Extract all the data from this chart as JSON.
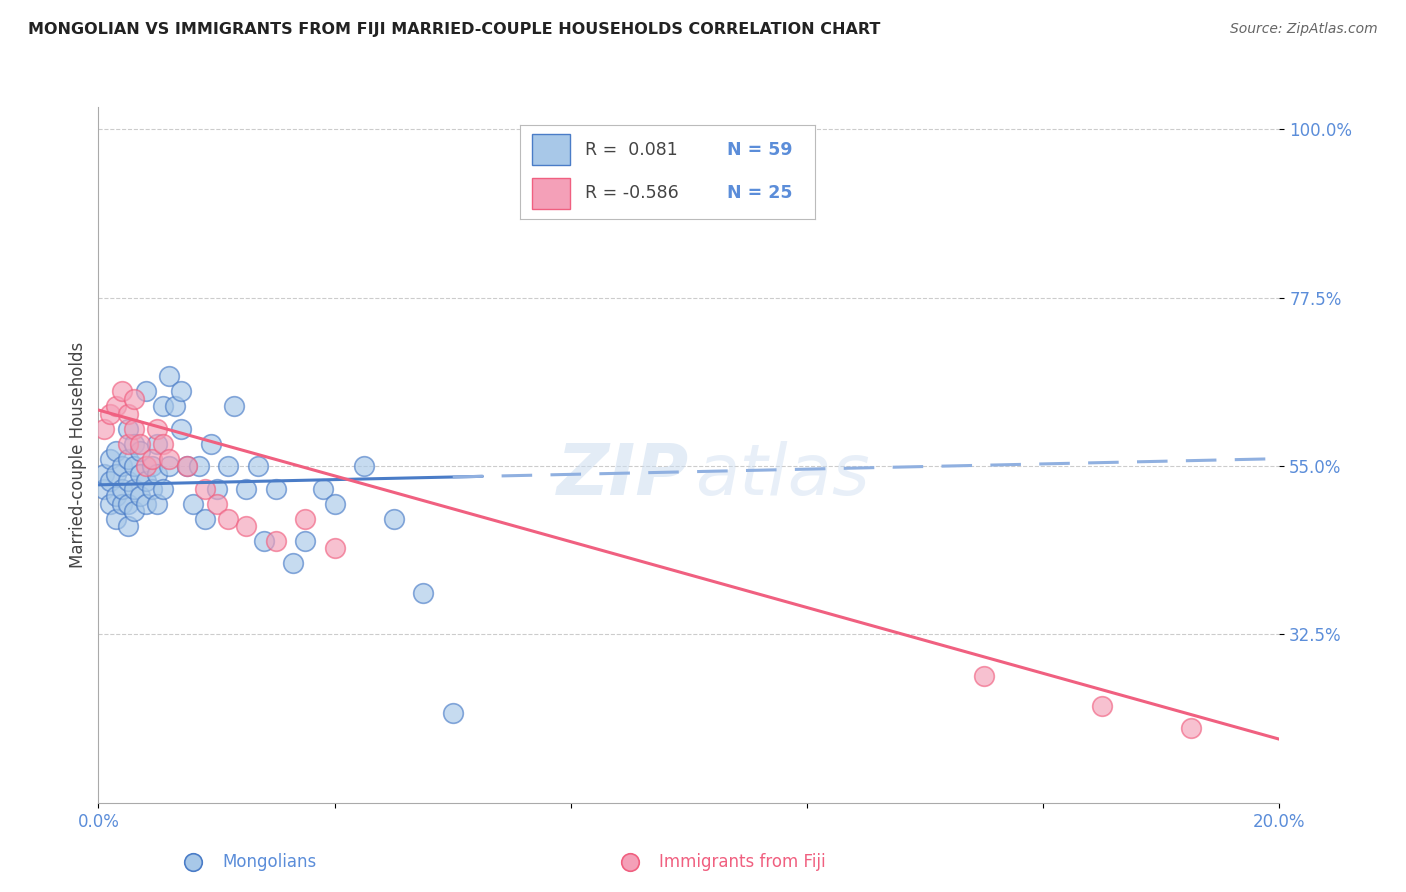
{
  "title": "MONGOLIAN VS IMMIGRANTS FROM FIJI MARRIED-COUPLE HOUSEHOLDS CORRELATION CHART",
  "source": "Source: ZipAtlas.com",
  "xlabel_mongolians": "Mongolians",
  "xlabel_fiji": "Immigrants from Fiji",
  "ylabel": "Married-couple Households",
  "x_min": 0.0,
  "x_max": 0.2,
  "y_min": 0.1,
  "y_max": 1.03,
  "y_ticks": [
    0.325,
    0.55,
    0.775,
    1.0
  ],
  "y_tick_labels": [
    "32.5%",
    "55.0%",
    "77.5%",
    "100.0%"
  ],
  "x_ticks": [
    0.0,
    0.04,
    0.08,
    0.12,
    0.16,
    0.2
  ],
  "x_tick_labels": [
    "0.0%",
    "",
    "",
    "",
    "",
    "20.0%"
  ],
  "color_mongolian": "#a8c8e8",
  "color_fiji": "#f4a0b8",
  "color_trend_mongolian": "#4a7cc7",
  "color_trend_fiji": "#f06080",
  "color_trend_dashed": "#90b0e0",
  "color_axis_labels": "#5b8dd9",
  "color_title": "#222222",
  "color_grid": "#cccccc",
  "background_color": "#ffffff",
  "mongolian_x": [
    0.001,
    0.001,
    0.002,
    0.002,
    0.002,
    0.003,
    0.003,
    0.003,
    0.003,
    0.004,
    0.004,
    0.004,
    0.005,
    0.005,
    0.005,
    0.005,
    0.005,
    0.006,
    0.006,
    0.006,
    0.006,
    0.007,
    0.007,
    0.007,
    0.008,
    0.008,
    0.008,
    0.009,
    0.009,
    0.01,
    0.01,
    0.01,
    0.011,
    0.011,
    0.012,
    0.012,
    0.013,
    0.014,
    0.014,
    0.015,
    0.016,
    0.017,
    0.018,
    0.019,
    0.02,
    0.022,
    0.023,
    0.025,
    0.027,
    0.028,
    0.03,
    0.033,
    0.035,
    0.038,
    0.04,
    0.045,
    0.05,
    0.055,
    0.06
  ],
  "mongolian_y": [
    0.52,
    0.54,
    0.5,
    0.53,
    0.56,
    0.48,
    0.51,
    0.54,
    0.57,
    0.5,
    0.52,
    0.55,
    0.47,
    0.5,
    0.53,
    0.56,
    0.6,
    0.49,
    0.52,
    0.55,
    0.58,
    0.51,
    0.54,
    0.57,
    0.5,
    0.53,
    0.65,
    0.52,
    0.55,
    0.5,
    0.54,
    0.58,
    0.52,
    0.63,
    0.55,
    0.67,
    0.63,
    0.6,
    0.65,
    0.55,
    0.5,
    0.55,
    0.48,
    0.58,
    0.52,
    0.55,
    0.63,
    0.52,
    0.55,
    0.45,
    0.52,
    0.42,
    0.45,
    0.52,
    0.5,
    0.55,
    0.48,
    0.38,
    0.22
  ],
  "fiji_x": [
    0.001,
    0.002,
    0.003,
    0.004,
    0.005,
    0.005,
    0.006,
    0.006,
    0.007,
    0.008,
    0.009,
    0.01,
    0.011,
    0.012,
    0.015,
    0.018,
    0.02,
    0.022,
    0.025,
    0.03,
    0.035,
    0.04,
    0.15,
    0.17,
    0.185
  ],
  "fiji_y": [
    0.6,
    0.62,
    0.63,
    0.65,
    0.58,
    0.62,
    0.6,
    0.64,
    0.58,
    0.55,
    0.56,
    0.6,
    0.58,
    0.56,
    0.55,
    0.52,
    0.5,
    0.48,
    0.47,
    0.45,
    0.48,
    0.44,
    0.27,
    0.23,
    0.2
  ],
  "trend_mongolian_x0": 0.0,
  "trend_mongolian_x1": 0.2,
  "trend_mongolian_y0": 0.525,
  "trend_mongolian_y1": 0.56,
  "trend_solid_end": 0.065,
  "trend_dashed_start": 0.06,
  "trend_fiji_x0": 0.0,
  "trend_fiji_x1": 0.2,
  "trend_fiji_y0": 0.625,
  "trend_fiji_y1": 0.185
}
